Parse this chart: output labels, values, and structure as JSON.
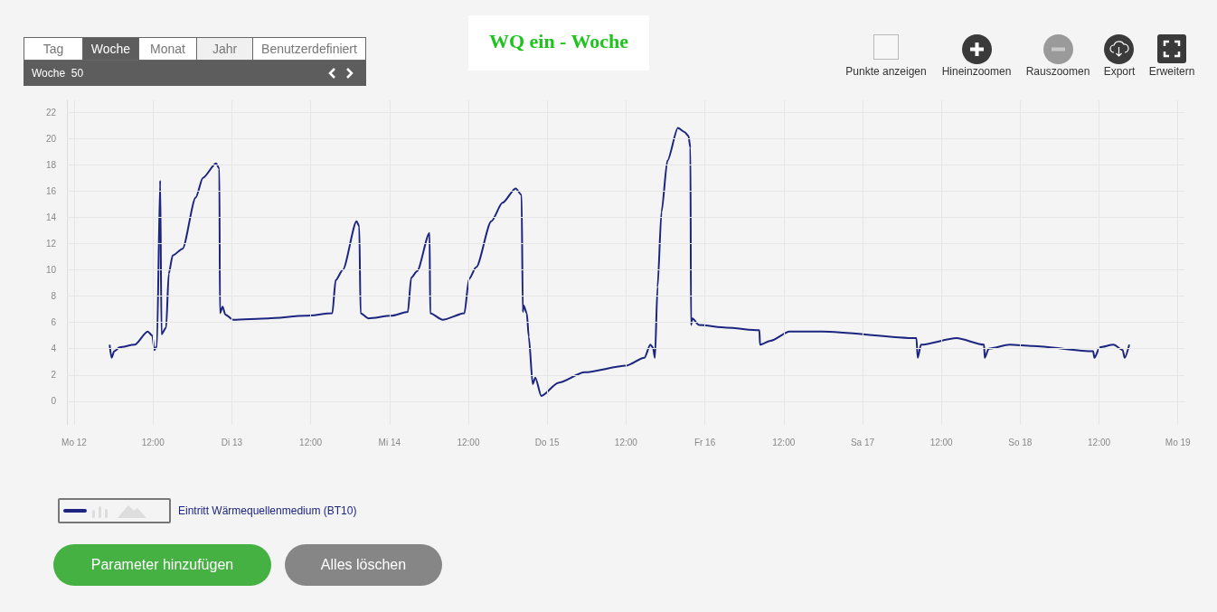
{
  "chart_data": {
    "type": "line",
    "title": "WQ ein - Woche",
    "annotations": [
      "Tag",
      "Woche",
      "Monat",
      "Jahr",
      "Benutzerdefiniert",
      "Woche  50",
      "Punkte anzeigen",
      "Hineinzoomen",
      "Rauszoomen",
      "Export",
      "Erweitern",
      "Parameter hinzufügen",
      "Alles löschen"
    ],
    "x": [
      "--12-12T05:24",
      "--12-12T05:42",
      "--12-12T06:06",
      "--12-12T06:54",
      "--12-12T09:12",
      "--12-12T11:12",
      "--12-12T11:54",
      "--12-12T12:12",
      "--12-12T12:36",
      "--12-12T13:06",
      "--12-12T13:18",
      "--12-12T14:00",
      "--12-12T14:24",
      "--12-12T15:00",
      "--12-12T16:30",
      "--12-12T18:30",
      "--12-12T19:36",
      "--12-12T21:36",
      "--12-12T22:06",
      "--12-12T22:12",
      "--12-12T22:36",
      "--12-12T23:00",
      "--12-13T00:12",
      "--12-13T05:30",
      "--12-13T11:12",
      "--12-13T15:18",
      "--12-13T15:48",
      "--12-13T16:54",
      "--12-13T19:00",
      "--12-13T19:24",
      "--12-13T19:36",
      "--12-13T20:48",
      "--12-14T00:12",
      "--12-14T02:48",
      "--12-14T03:18",
      "--12-14T04:12",
      "--12-14T06:06",
      "--12-14T06:12",
      "--12-14T08:06",
      "--12-14T11:24",
      "--12-14T12:06",
      "--12-14T13:12",
      "--12-14T15:30",
      "--12-14T17:12",
      "--12-14T19:12",
      "--12-14T20:06",
      "--12-14T20:18",
      "--12-14T20:24",
      "--12-14T20:54",
      "--12-14T21:12",
      "--12-14T21:48",
      "--12-14T22:12",
      "--12-14T23:06",
      "--12-15T01:42",
      "--12-15T05:42",
      "--12-15T12:00",
      "--12-15T14:48",
      "--12-15T15:42",
      "--12-15T16:06",
      "--12-15T16:24",
      "--12-15T16:48",
      "--12-15T17:24",
      "--12-15T18:18",
      "--12-15T19:54",
      "--12-15T20:54",
      "--12-15T21:30",
      "--12-15T21:48",
      "--12-15T21:54",
      "--12-15T22:06",
      "--12-15T23:06",
      "--12-16T03:18",
      "--12-16T08:18",
      "--12-16T08:24",
      "--12-16T10:00",
      "--12-16T12:54",
      "--12-16T17:54",
      "--12-17T08:12",
      "--12-17T08:24",
      "--12-17T08:54",
      "--12-17T14:18",
      "--12-17T18:30",
      "--12-17T18:36",
      "--12-17T19:12",
      "--12-17T22:24",
      "--12-18T01:54",
      "--12-18T11:06",
      "--12-18T11:18",
      "--12-18T12:06",
      "--12-18T14:12",
      "--12-18T15:36",
      "--12-18T15:54",
      "--12-18T16:36"
    ],
    "series": [
      {
        "name": "Eintritt Wärmequellenmedium (BT10)",
        "color": "#1c2580",
        "values": [
          4.3,
          3.3,
          3.8,
          4.1,
          4.3,
          5.3,
          5.0,
          3.9,
          4.2,
          16.8,
          5.1,
          5.6,
          9.7,
          11.1,
          11.6,
          15.5,
          17.0,
          18.1,
          17.7,
          6.7,
          7.2,
          6.6,
          6.2,
          6.3,
          6.5,
          6.7,
          9.2,
          10.0,
          13.7,
          13.3,
          6.7,
          6.3,
          6.5,
          6.8,
          9.4,
          9.9,
          12.8,
          6.7,
          6.2,
          6.7,
          9.3,
          10.2,
          13.7,
          15.1,
          16.2,
          15.7,
          6.8,
          7.3,
          6.7,
          4.9,
          1.3,
          1.8,
          0.4,
          1.4,
          2.2,
          2.7,
          3.3,
          4.3,
          4.1,
          3.3,
          8.7,
          14.4,
          18.3,
          20.8,
          20.5,
          20.2,
          19.3,
          5.8,
          6.3,
          5.8,
          5.6,
          5.4,
          4.3,
          4.6,
          5.3,
          5.3,
          4.8,
          3.3,
          4.3,
          4.8,
          4.3,
          3.3,
          4.0,
          4.3,
          4.2,
          3.8,
          3.3,
          4.1,
          4.3,
          3.9,
          3.3,
          4.3
        ]
      }
    ],
    "xlim": [
      "--12-11T22:54",
      "--12-19T01:00"
    ],
    "xticks": [
      {
        "value": "--12-12",
        "label": "Mo 12"
      },
      {
        "value": "--12-12T12:00",
        "label": "12:00"
      },
      {
        "value": "--12-13",
        "label": "Di 13"
      },
      {
        "value": "--12-13T12:00",
        "label": "12:00"
      },
      {
        "value": "--12-14",
        "label": "Mi 14"
      },
      {
        "value": "--12-14T12:00",
        "label": "12:00"
      },
      {
        "value": "--12-15",
        "label": "Do 15"
      },
      {
        "value": "--12-15T12:00",
        "label": "12:00"
      },
      {
        "value": "--12-16",
        "label": "Fr 16"
      },
      {
        "value": "--12-16T12:00",
        "label": "12:00"
      },
      {
        "value": "--12-17",
        "label": "Sa 17"
      },
      {
        "value": "--12-17T12:00",
        "label": "12:00"
      },
      {
        "value": "--12-18",
        "label": "So 18"
      },
      {
        "value": "--12-18T12:00",
        "label": "12:00"
      },
      {
        "value": "--12-19",
        "label": "Mo 19"
      }
    ],
    "ylim": [
      -1.8,
      22.9
    ],
    "yticks": [
      0,
      2,
      4,
      6,
      8,
      10,
      12,
      14,
      16,
      18,
      20,
      22
    ],
    "grid": true,
    "legend": "bottom left",
    "marker": "none",
    "line_style": "solid"
  }
}
